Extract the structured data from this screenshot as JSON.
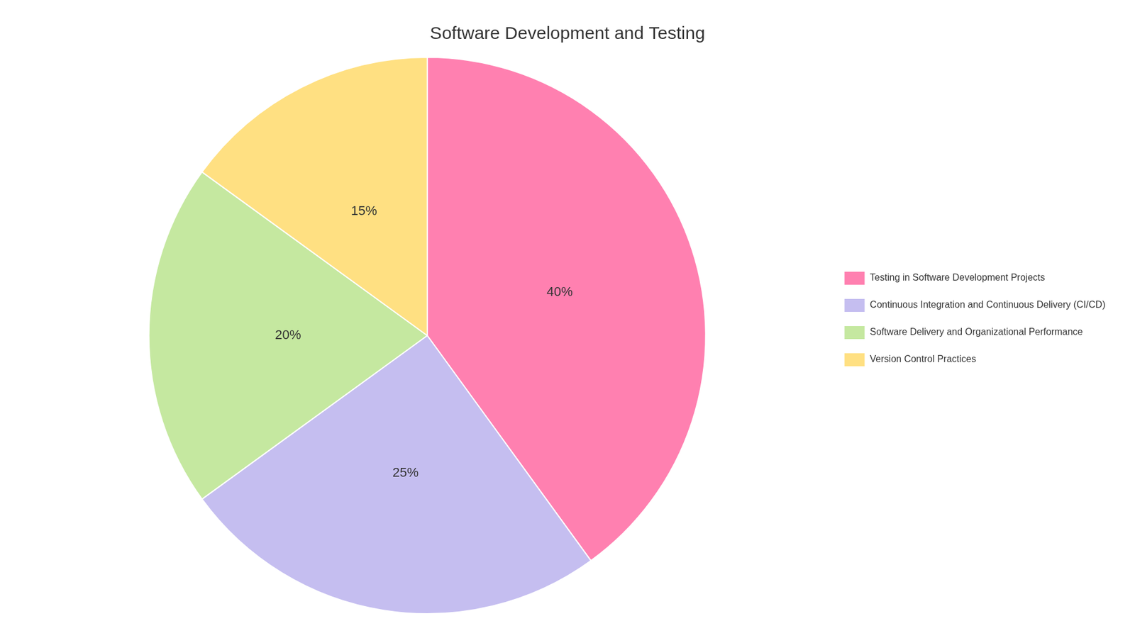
{
  "chart_data": {
    "type": "pie",
    "title": "Software Development and Testing",
    "categories": [
      "Testing in Software Development Projects",
      "Continuous Integration and Continuous Delivery (CI/CD)",
      "Software Delivery and Organizational Performance",
      "Version Control Practices"
    ],
    "values": [
      40,
      25,
      20,
      15
    ],
    "value_labels": [
      "40%",
      "25%",
      "20%",
      "15%"
    ],
    "colors": [
      "#FF80B0",
      "#C5BEF0",
      "#C5E8A0",
      "#FFE082"
    ],
    "data_labels": true,
    "legend": "right"
  }
}
